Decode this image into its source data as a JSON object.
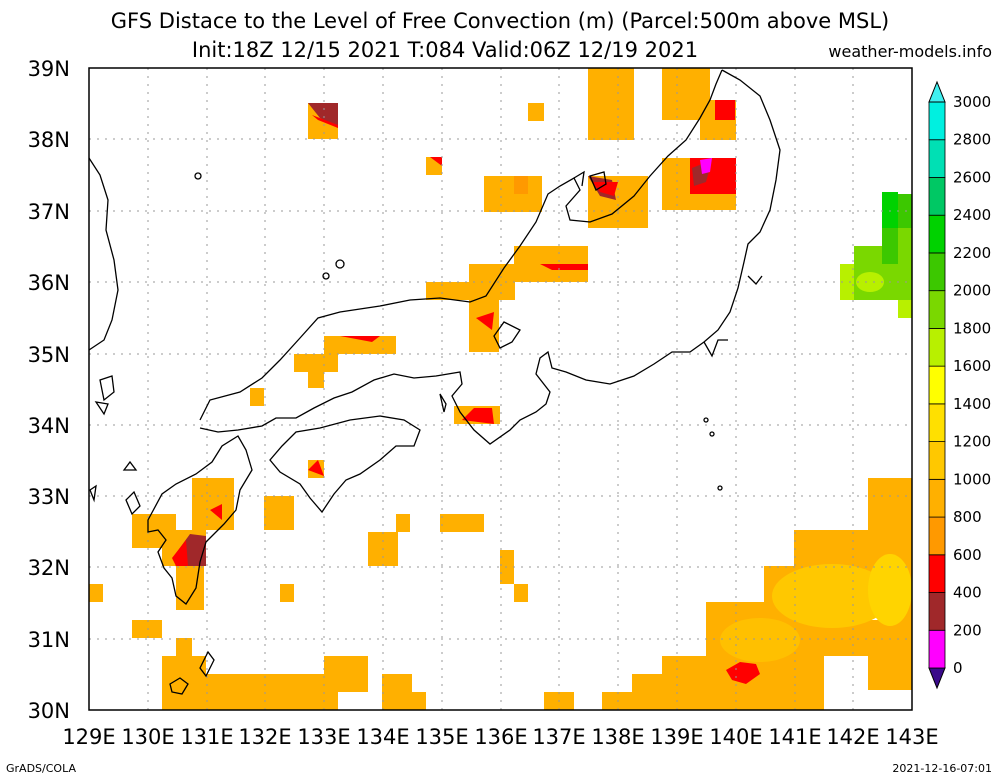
{
  "header": {
    "title": "GFS Distace to the Level of Free Convection (m) (Parcel:500m above MSL)",
    "subtitle": "Init:18Z 12/15 2021 T:084 Valid:06Z 12/19 2021",
    "brand": "weather-models.info"
  },
  "footer": {
    "left": "GrADS/COLA",
    "right": "2021-12-16-07:01"
  },
  "map": {
    "lon_labels": [
      "129E",
      "130E",
      "131E",
      "132E",
      "133E",
      "134E",
      "135E",
      "136E",
      "137E",
      "138E",
      "139E",
      "140E",
      "141E",
      "142E",
      "143E"
    ],
    "lat_labels": [
      "39N",
      "38N",
      "37N",
      "36N",
      "35N",
      "34N",
      "33N",
      "32N",
      "31N",
      "30N"
    ]
  },
  "colorbar": {
    "levels": [
      "0",
      "200",
      "400",
      "600",
      "800",
      "1000",
      "1200",
      "1400",
      "1600",
      "1800",
      "2000",
      "2200",
      "2400",
      "2600",
      "2800",
      "3000"
    ],
    "colors": [
      "#3a0a8a",
      "#ff00ff",
      "#a0282a",
      "#ff0000",
      "#ff9900",
      "#ffb000",
      "#ffc800",
      "#ffe000",
      "#ffff00",
      "#b8f000",
      "#7ad800",
      "#3cc800",
      "#00d200",
      "#00c864",
      "#00e0b4",
      "#00f0e0",
      "#40f0f0"
    ]
  }
}
